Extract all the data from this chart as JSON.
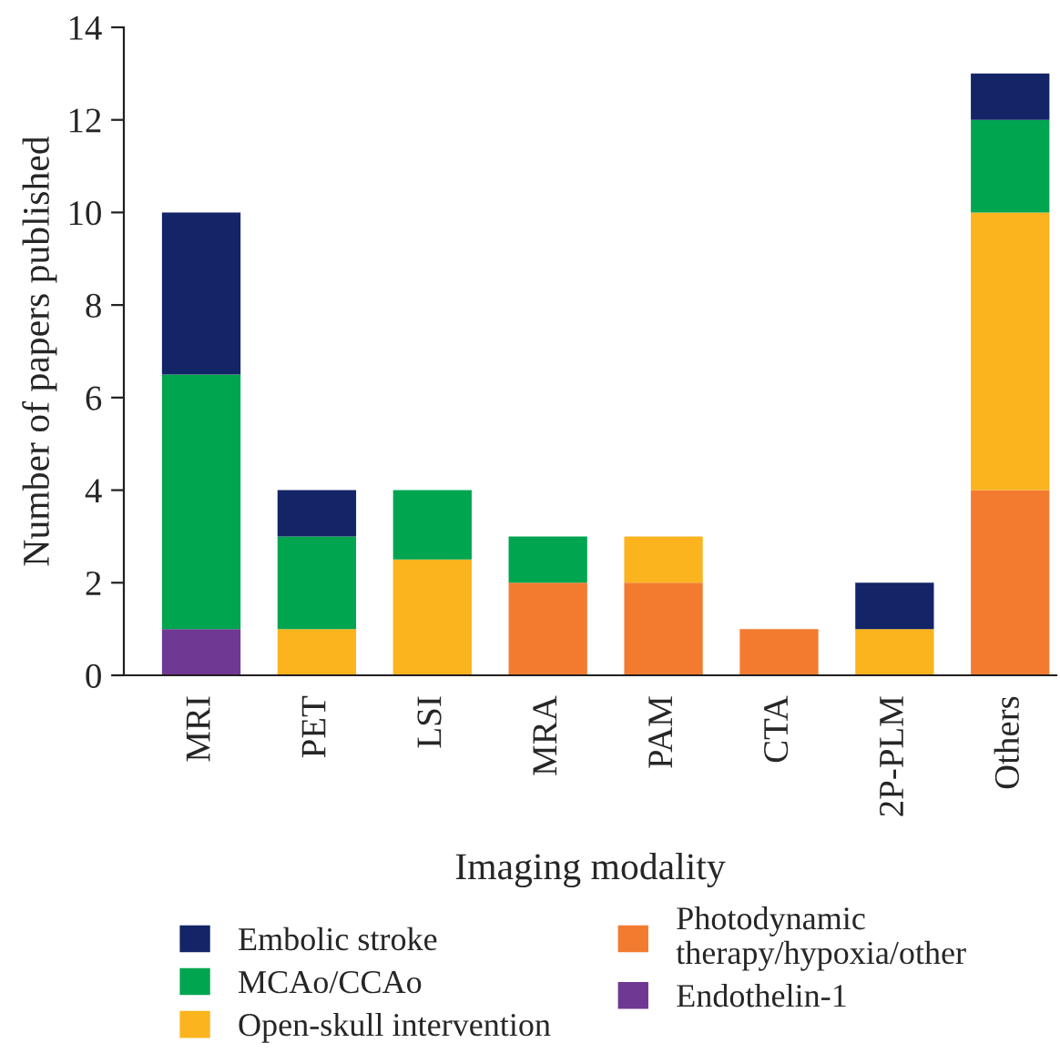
{
  "chart_data": {
    "type": "bar",
    "stacked": true,
    "xlabel": "Imaging modality",
    "ylabel": "Number of papers published",
    "categories": [
      "MRI",
      "PET",
      "LSI",
      "MRA",
      "PAM",
      "CTA",
      "2P-PLM",
      "Others"
    ],
    "series": [
      {
        "name": "Endothelin-1",
        "color": "#6f3893",
        "values": [
          1,
          0,
          0,
          0,
          0,
          0,
          0,
          0
        ]
      },
      {
        "name": "Photodynamic\ntherapy/hypoxia/other",
        "color": "#f37b30",
        "values": [
          0,
          0,
          0,
          2,
          2,
          1,
          0,
          4
        ]
      },
      {
        "name": "Open-skull intervention",
        "color": "#fbb41e",
        "values": [
          0,
          1,
          2.5,
          0,
          1,
          0,
          1,
          6
        ]
      },
      {
        "name": "MCAo/CCAo",
        "color": "#00a550",
        "values": [
          5.5,
          2,
          1.5,
          1,
          0,
          0,
          0,
          2
        ]
      },
      {
        "name": "Embolic stroke",
        "color": "#132467",
        "values": [
          3.5,
          1,
          0,
          0,
          0,
          0,
          1,
          1
        ]
      }
    ],
    "ylim": [
      0,
      14
    ],
    "yticks": [
      0,
      2,
      4,
      6,
      8,
      10,
      12,
      14
    ],
    "grid": false,
    "legend": "bottom"
  }
}
